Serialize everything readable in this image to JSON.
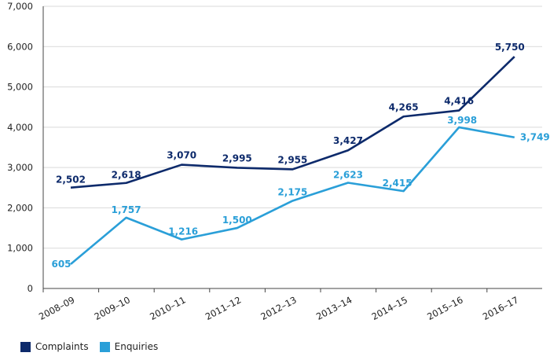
{
  "chart_data": {
    "type": "line",
    "categories": [
      "2008–09",
      "2009–10",
      "2010–11",
      "2011–12",
      "2012–13",
      "2013–14",
      "2014–15",
      "2015–16",
      "2016–17"
    ],
    "ylim": [
      0,
      7000
    ],
    "yticks": [
      0,
      1000,
      2000,
      3000,
      4000,
      5000,
      6000,
      7000
    ],
    "ytick_labels": [
      "0",
      "1,000",
      "2,000",
      "3,000",
      "4,000",
      "5,000",
      "6,000",
      "7,000"
    ],
    "grid": "horizontal",
    "legend_position": "bottom-left",
    "series": [
      {
        "name": "Complaints",
        "color": "#0d2a6b",
        "values": [
          2502,
          2618,
          3070,
          2995,
          2955,
          3427,
          4265,
          4416,
          5750
        ],
        "labels": [
          "2,502",
          "2,618",
          "3,070",
          "2,995",
          "2,955",
          "3,427",
          "4,265",
          "4,416",
          "5,750"
        ]
      },
      {
        "name": "Enquiries",
        "color": "#2a9fd8",
        "values": [
          605,
          1757,
          1216,
          1500,
          2175,
          2623,
          2415,
          3998,
          3749
        ],
        "labels": [
          "605",
          "1,757",
          "1,216",
          "1,500",
          "2,175",
          "2,623",
          "2,415",
          "3,998",
          "3,749"
        ]
      }
    ]
  }
}
